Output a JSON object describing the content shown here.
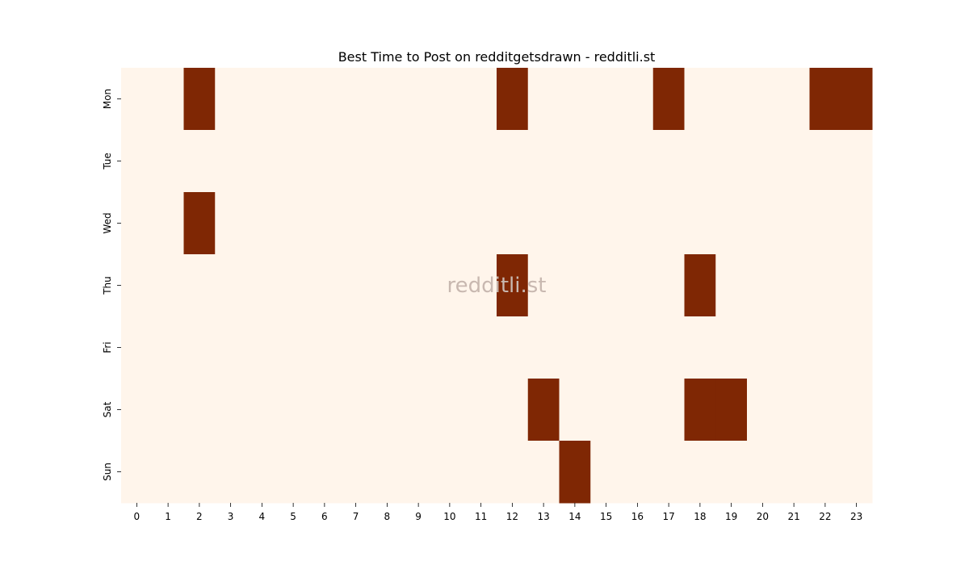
{
  "chart_data": {
    "type": "heatmap",
    "title": "Best Time to Post on redditgetsdrawn - redditli.st",
    "watermark": "redditli.st",
    "xlabel": "",
    "ylabel": "",
    "x_categories": [
      "0",
      "1",
      "2",
      "3",
      "4",
      "5",
      "6",
      "7",
      "8",
      "9",
      "10",
      "11",
      "12",
      "13",
      "14",
      "15",
      "16",
      "17",
      "18",
      "19",
      "20",
      "21",
      "22",
      "23"
    ],
    "y_categories": [
      "Mon",
      "Tue",
      "Wed",
      "Thu",
      "Fri",
      "Sat",
      "Sun"
    ],
    "values": [
      [
        0,
        0,
        1,
        0,
        0,
        0,
        0,
        0,
        0,
        0,
        0,
        0,
        1,
        0,
        0,
        0,
        0,
        1,
        0,
        0,
        0,
        0,
        1,
        1
      ],
      [
        0,
        0,
        0,
        0,
        0,
        0,
        0,
        0,
        0,
        0,
        0,
        0,
        0,
        0,
        0,
        0,
        0,
        0,
        0,
        0,
        0,
        0,
        0,
        0
      ],
      [
        0,
        0,
        1,
        0,
        0,
        0,
        0,
        0,
        0,
        0,
        0,
        0,
        0,
        0,
        0,
        0,
        0,
        0,
        0,
        0,
        0,
        0,
        0,
        0
      ],
      [
        0,
        0,
        0,
        0,
        0,
        0,
        0,
        0,
        0,
        0,
        0,
        0,
        1,
        0,
        0,
        0,
        0,
        0,
        1,
        0,
        0,
        0,
        0,
        0
      ],
      [
        0,
        0,
        0,
        0,
        0,
        0,
        0,
        0,
        0,
        0,
        0,
        0,
        0,
        0,
        0,
        0,
        0,
        0,
        0,
        0,
        0,
        0,
        0,
        0
      ],
      [
        0,
        0,
        0,
        0,
        0,
        0,
        0,
        0,
        0,
        0,
        0,
        0,
        0,
        1,
        0,
        0,
        0,
        0,
        1,
        1,
        0,
        0,
        0,
        0
      ],
      [
        0,
        0,
        0,
        0,
        0,
        0,
        0,
        0,
        0,
        0,
        0,
        0,
        0,
        0,
        1,
        0,
        0,
        0,
        0,
        0,
        0,
        0,
        0,
        0
      ]
    ],
    "colors": {
      "low": "#fff5eb",
      "high": "#7f2704",
      "watermark": "#c8b8b0"
    }
  }
}
